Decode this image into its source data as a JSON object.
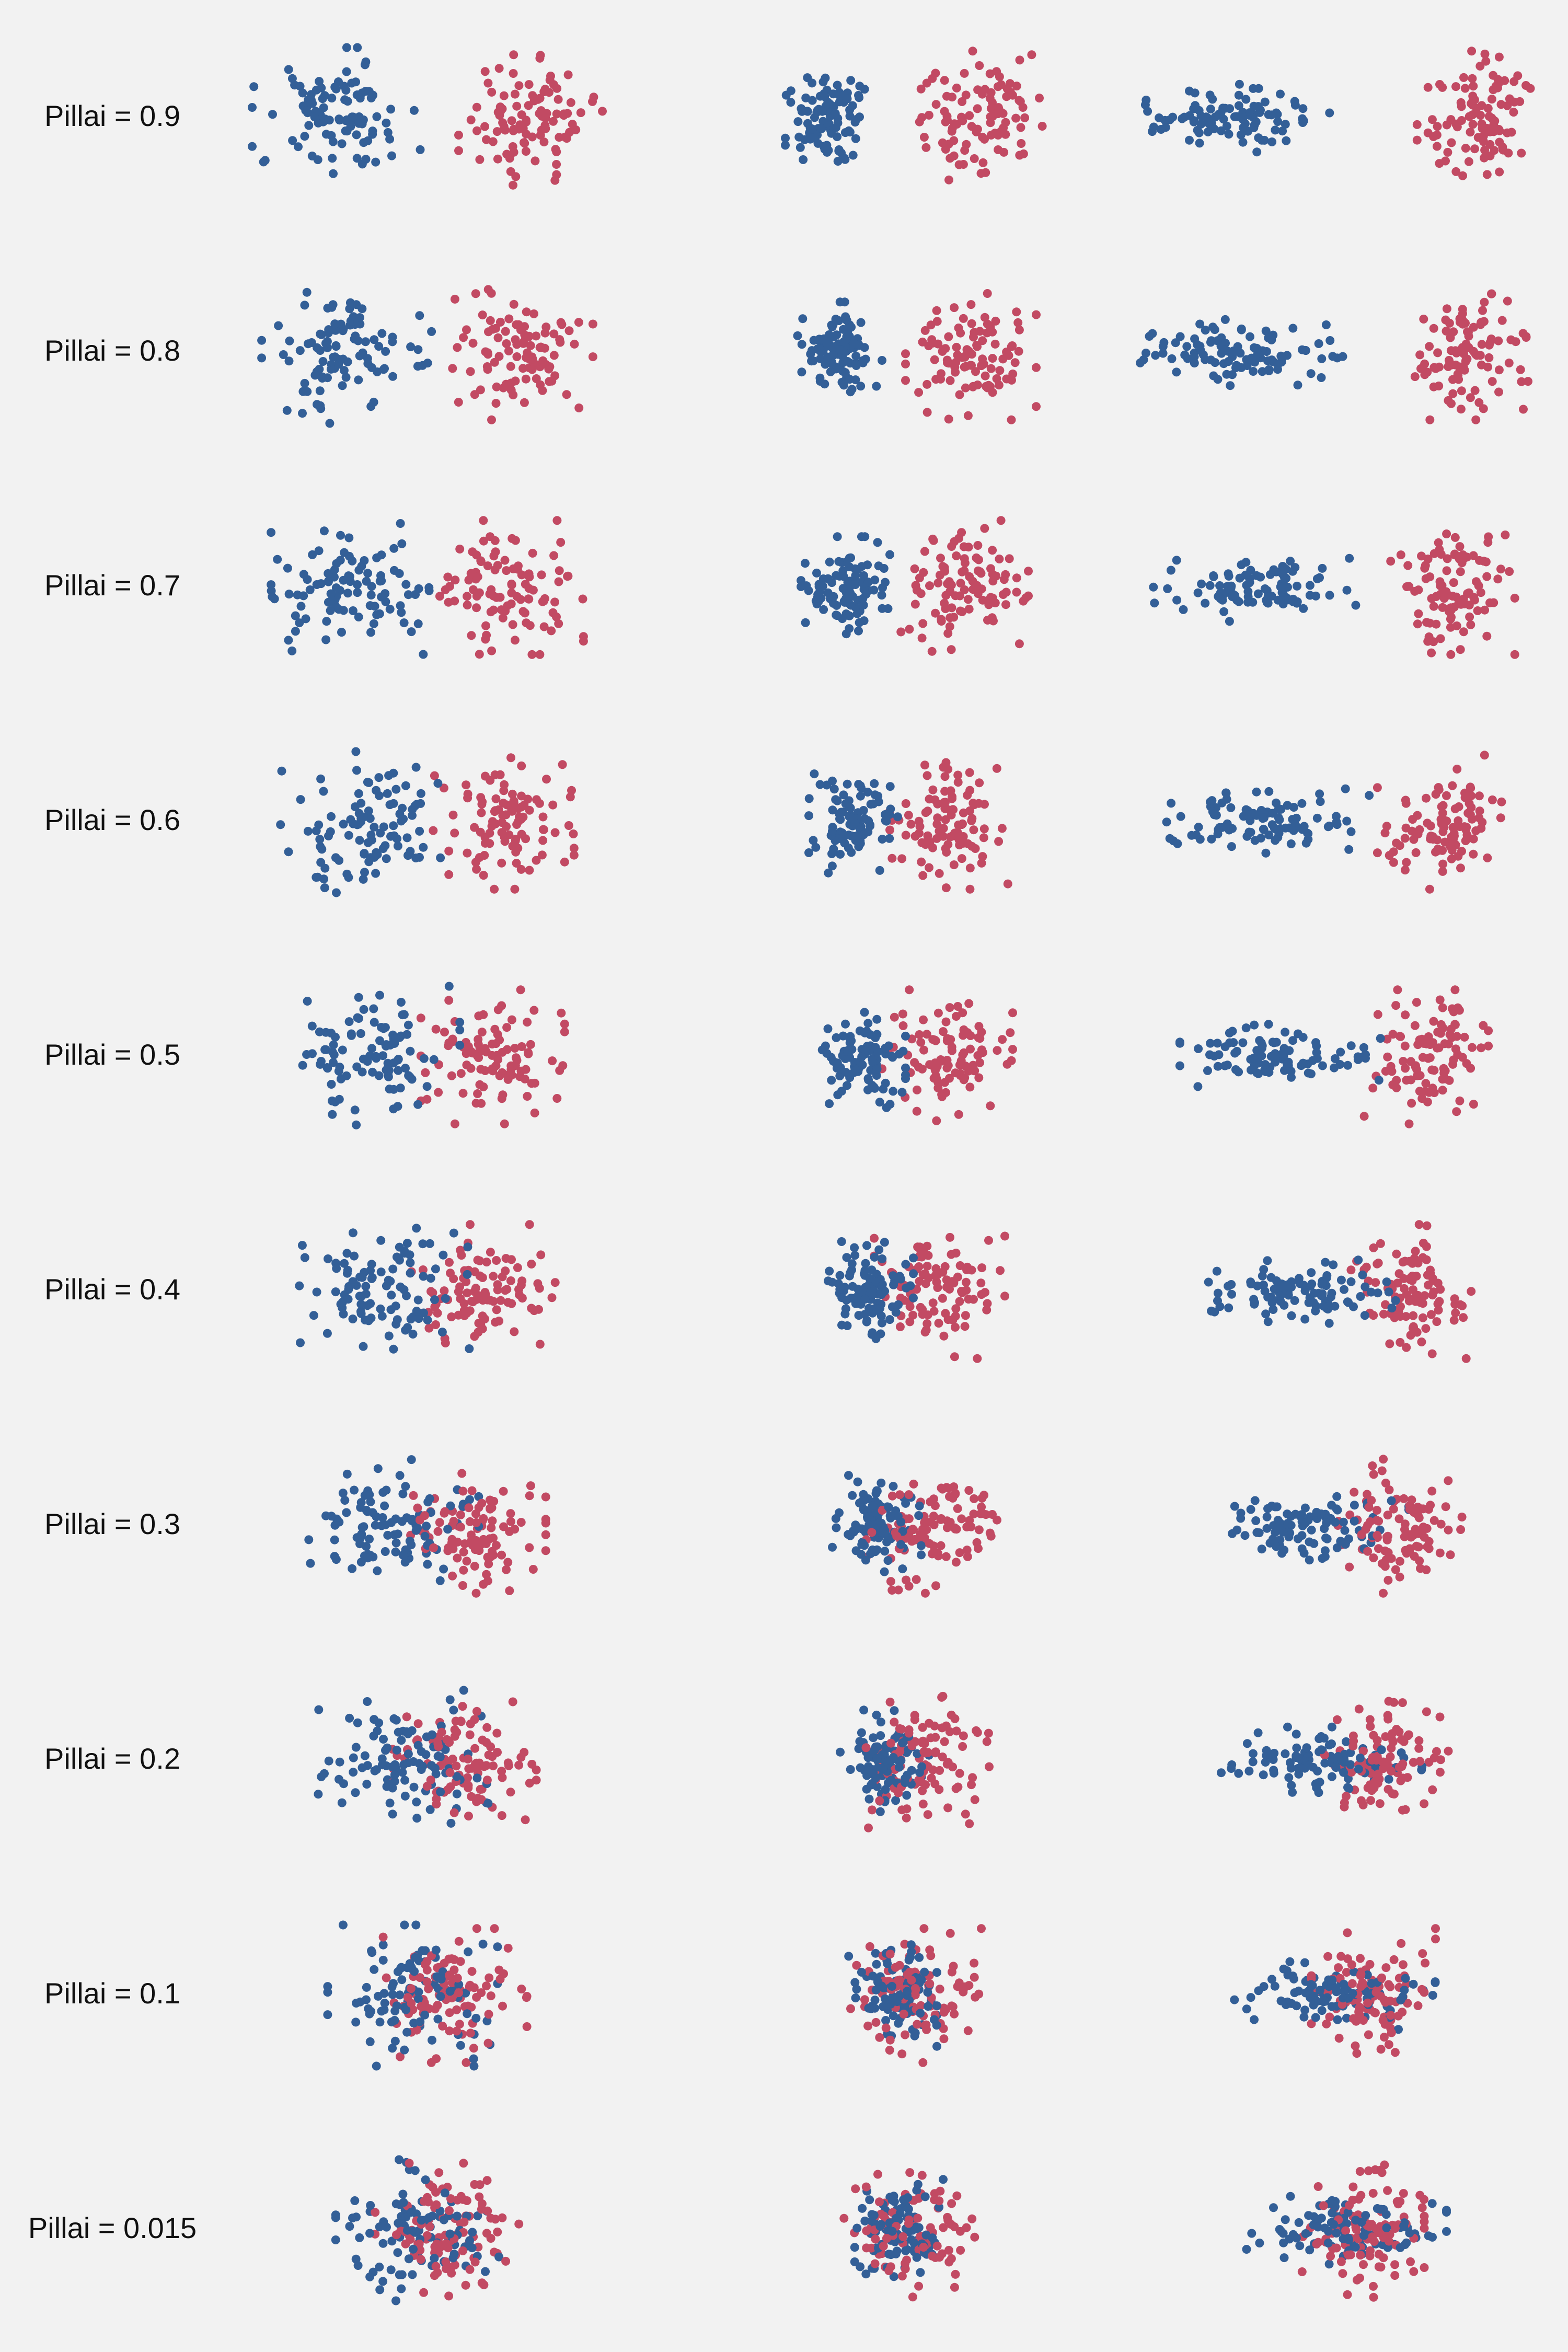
{
  "chart_data": {
    "type": "scatter",
    "background_color": "#f2f2f2",
    "series_colors": [
      "#335f97",
      "#c24a63"
    ],
    "legend": "none",
    "grid": false,
    "axes_visible": false,
    "rows": [
      {
        "label": "Pillai = 0.9",
        "pillai": 0.9
      },
      {
        "label": "Pillai = 0.8",
        "pillai": 0.8
      },
      {
        "label": "Pillai = 0.7",
        "pillai": 0.7
      },
      {
        "label": "Pillai = 0.6",
        "pillai": 0.6
      },
      {
        "label": "Pillai = 0.5",
        "pillai": 0.5
      },
      {
        "label": "Pillai = 0.4",
        "pillai": 0.4
      },
      {
        "label": "Pillai = 0.3",
        "pillai": 0.3
      },
      {
        "label": "Pillai = 0.2",
        "pillai": 0.2
      },
      {
        "label": "Pillai = 0.1",
        "pillai": 0.1
      },
      {
        "label": "Pillai = 0.015",
        "pillai": 0.015
      }
    ],
    "columns": [
      {
        "variant": "equal spread"
      },
      {
        "variant": "compact first group"
      },
      {
        "variant": "elongated first group"
      }
    ],
    "points_per_group": 100
  }
}
